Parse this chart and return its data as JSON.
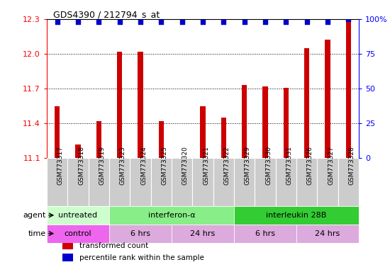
{
  "title": "GDS4390 / 212794_s_at",
  "samples": [
    "GSM773317",
    "GSM773318",
    "GSM773319",
    "GSM773323",
    "GSM773324",
    "GSM773325",
    "GSM773320",
    "GSM773321",
    "GSM773322",
    "GSM773329",
    "GSM773330",
    "GSM773331",
    "GSM773326",
    "GSM773327",
    "GSM773328"
  ],
  "bar_values": [
    11.55,
    11.22,
    11.42,
    12.02,
    12.02,
    11.42,
    11.1,
    11.55,
    11.45,
    11.73,
    11.72,
    11.71,
    12.05,
    12.12,
    12.3
  ],
  "percentile_values": [
    98,
    98,
    98,
    98,
    98,
    98,
    98,
    98,
    98,
    98,
    98,
    98,
    98,
    98,
    100
  ],
  "ylim_left": [
    11.1,
    12.3
  ],
  "ylim_right": [
    0,
    100
  ],
  "yticks_left": [
    11.1,
    11.4,
    11.7,
    12.0,
    12.3
  ],
  "yticks_right": [
    0,
    25,
    50,
    75,
    100
  ],
  "bar_color": "#cc0000",
  "dot_color": "#0000cc",
  "agent_groups": [
    {
      "label": "untreated",
      "start": 0,
      "end": 3,
      "color": "#ccffcc"
    },
    {
      "label": "interferon-α",
      "start": 3,
      "end": 9,
      "color": "#88ee88"
    },
    {
      "label": "interleukin 28B",
      "start": 9,
      "end": 15,
      "color": "#33cc33"
    }
  ],
  "time_groups": [
    {
      "label": "control",
      "start": 0,
      "end": 3,
      "color": "#ee66ee"
    },
    {
      "label": "6 hrs",
      "start": 3,
      "end": 6,
      "color": "#ddaadd"
    },
    {
      "label": "24 hrs",
      "start": 6,
      "end": 9,
      "color": "#ddaadd"
    },
    {
      "label": "6 hrs",
      "start": 9,
      "end": 12,
      "color": "#ddaadd"
    },
    {
      "label": "24 hrs",
      "start": 12,
      "end": 15,
      "color": "#ddaadd"
    }
  ],
  "legend_items": [
    {
      "label": "transformed count",
      "color": "#cc0000"
    },
    {
      "label": "percentile rank within the sample",
      "color": "#0000cc"
    }
  ],
  "left_labels": [
    "agent",
    "time"
  ],
  "bar_width": 0.25
}
